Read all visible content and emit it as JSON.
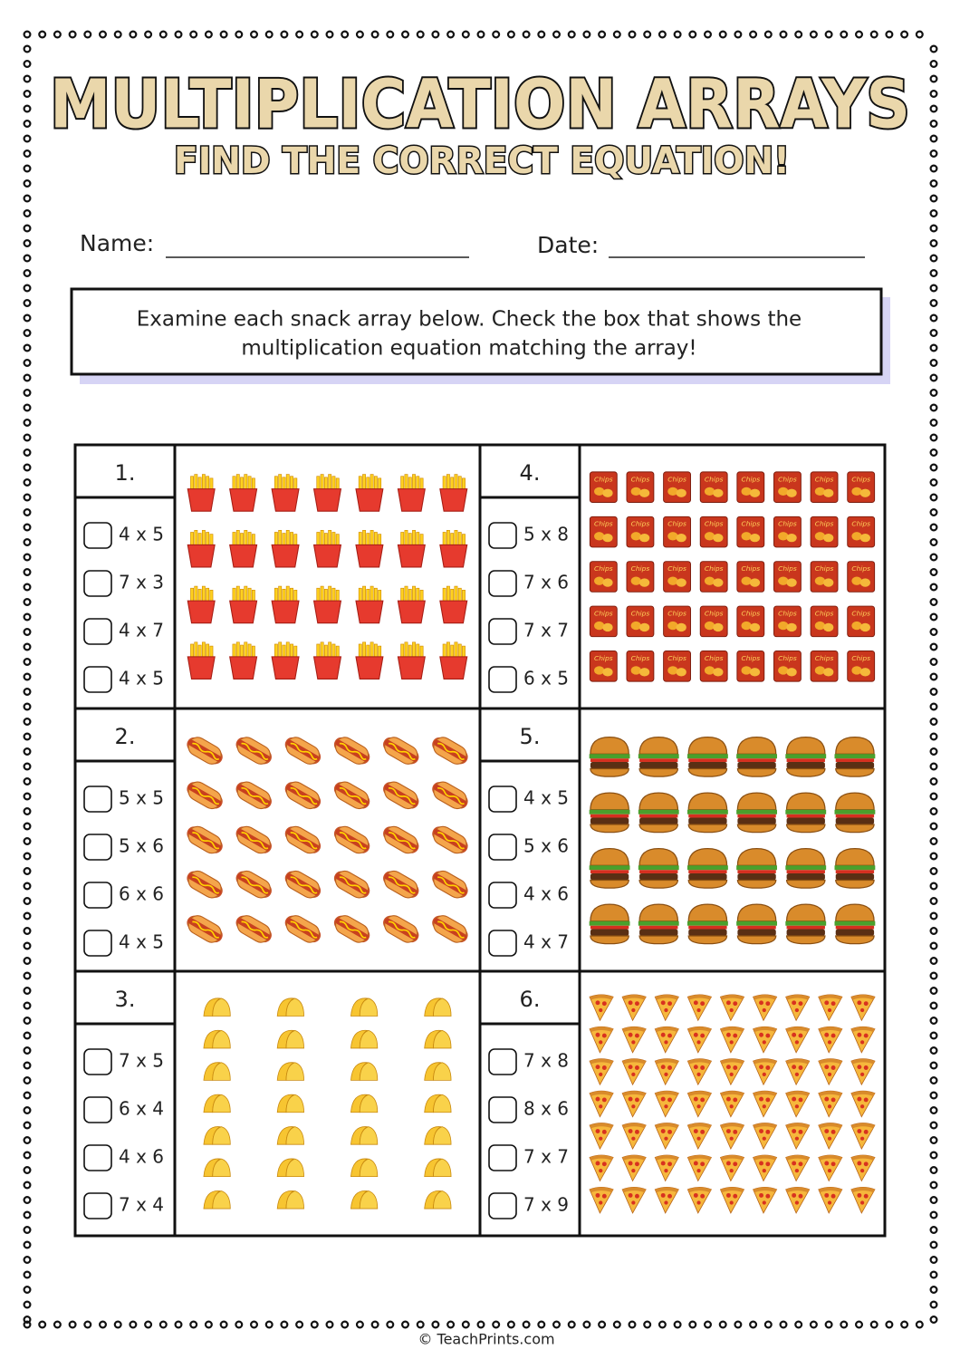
{
  "header": {
    "title": "MULTIPLICATION ARRAYS",
    "subtitle": "FIND THE CORRECT EQUATION!"
  },
  "fields": {
    "name": "Name:",
    "date": "Date:"
  },
  "instructions": [
    "Examine each snack array below. Check the box that shows the",
    "multiplication equation matching the array!"
  ],
  "problems": [
    {
      "number": "1.",
      "options": [
        "4 x 5",
        "7 x 3",
        "4 x 7",
        "4 x 5"
      ]
    },
    {
      "number": "2.",
      "options": [
        "5 x 5",
        "5 x 6",
        "6 x 6",
        "4 x 5"
      ]
    },
    {
      "number": "3.",
      "options": [
        "7 x 5",
        "6 x 4",
        "4 x 6",
        "7 x 4"
      ]
    },
    {
      "number": "4.",
      "options": [
        "5 x 8",
        "7 x 6",
        "7 x 7",
        "6 x 5"
      ]
    },
    {
      "number": "5.",
      "options": [
        "4 x 5",
        "5 x 6",
        "4 x 6",
        "4 x 7"
      ]
    },
    {
      "number": "6.",
      "options": [
        "7 x 8",
        "8 x 6",
        "7 x 7",
        "7 x 9"
      ]
    }
  ],
  "footer": "© TeachPrints.com"
}
